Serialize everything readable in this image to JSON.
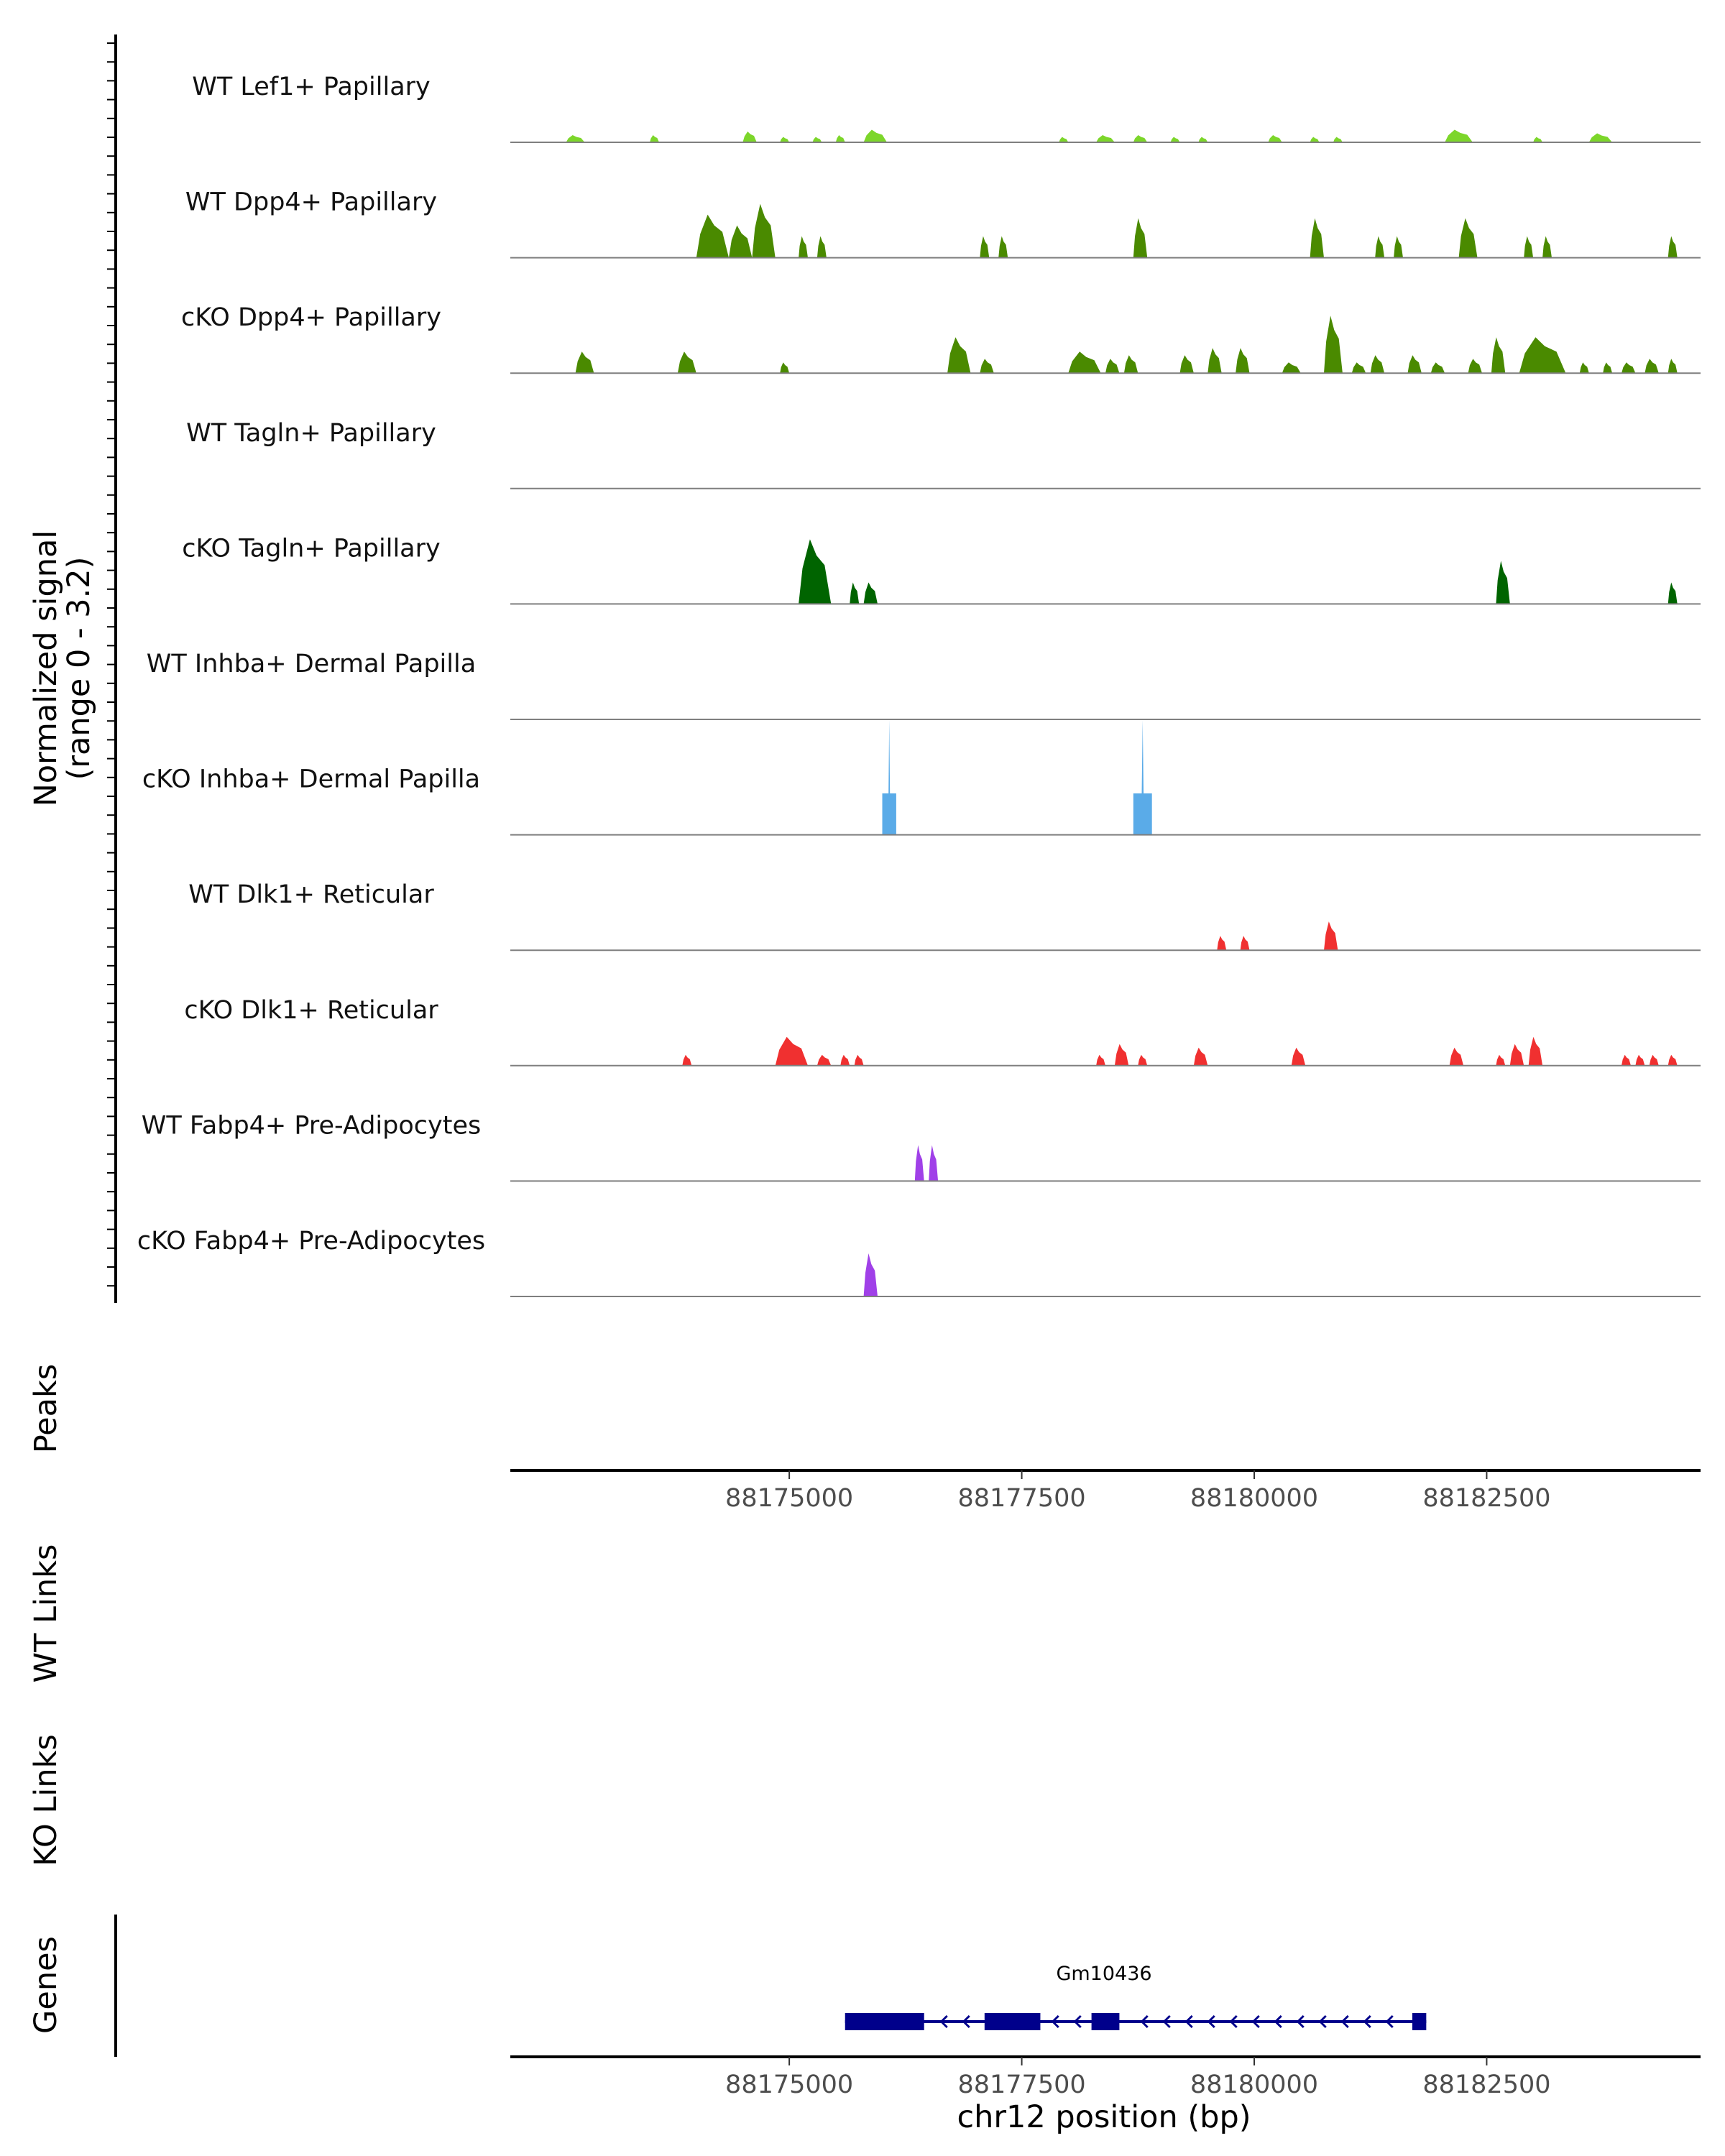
{
  "chart_data": {
    "type": "area",
    "title": "",
    "region": "chr12:88172000-88184800",
    "y_axis_label_line1": "Normalized signal",
    "y_axis_label_line2": "(range 0 - 3.2)",
    "ylim": [
      0,
      3.2
    ],
    "xlim": [
      88172000,
      88184800
    ],
    "x_ticks": [
      88175000,
      88177500,
      88180000,
      88182500
    ],
    "x_tick_labels": [
      "88175000",
      "88177500",
      "88180000",
      "88182500"
    ],
    "xlabel": "chr12 position (bp)",
    "tracks": [
      {
        "label": "WT Lef1+ Papillary",
        "color": "#7cd62a",
        "peaks": [
          [
            88172600,
            88172800,
            0.2
          ],
          [
            88173500,
            88173600,
            0.2
          ],
          [
            88174500,
            88174650,
            0.3
          ],
          [
            88174900,
            88175000,
            0.15
          ],
          [
            88175250,
            88175350,
            0.15
          ],
          [
            88175500,
            88175600,
            0.2
          ],
          [
            88175800,
            88176050,
            0.35
          ],
          [
            88177900,
            88178000,
            0.15
          ],
          [
            88178300,
            88178500,
            0.2
          ],
          [
            88178700,
            88178850,
            0.2
          ],
          [
            88179100,
            88179200,
            0.15
          ],
          [
            88179400,
            88179500,
            0.15
          ],
          [
            88180150,
            88180300,
            0.2
          ],
          [
            88180600,
            88180700,
            0.15
          ],
          [
            88180850,
            88180950,
            0.15
          ],
          [
            88182050,
            88182350,
            0.35
          ],
          [
            88183000,
            88183100,
            0.15
          ],
          [
            88183600,
            88183850,
            0.25
          ]
        ]
      },
      {
        "label": "WT Dpp4+ Papillary",
        "color": "#4a8a00",
        "peaks": [
          [
            88174000,
            88174350,
            1.2
          ],
          [
            88174350,
            88174600,
            0.9
          ],
          [
            88174600,
            88174850,
            1.5
          ],
          [
            88175100,
            88175200,
            0.6
          ],
          [
            88175300,
            88175400,
            0.6
          ],
          [
            88177050,
            88177150,
            0.6
          ],
          [
            88177250,
            88177350,
            0.6
          ],
          [
            88178700,
            88178850,
            1.1
          ],
          [
            88180600,
            88180750,
            1.1
          ],
          [
            88181300,
            88181400,
            0.6
          ],
          [
            88181500,
            88181600,
            0.6
          ],
          [
            88182200,
            88182400,
            1.1
          ],
          [
            88182900,
            88183000,
            0.6
          ],
          [
            88183100,
            88183200,
            0.6
          ],
          [
            88184450,
            88184550,
            0.6
          ]
        ]
      },
      {
        "label": "cKO Dpp4+ Papillary",
        "color": "#4a8a00",
        "peaks": [
          [
            88172700,
            88172900,
            0.6
          ],
          [
            88173800,
            88174000,
            0.6
          ],
          [
            88174900,
            88175000,
            0.3
          ],
          [
            88176700,
            88176950,
            1.0
          ],
          [
            88177050,
            88177200,
            0.4
          ],
          [
            88178000,
            88178350,
            0.6
          ],
          [
            88178400,
            88178550,
            0.4
          ],
          [
            88178600,
            88178750,
            0.5
          ],
          [
            88179200,
            88179350,
            0.5
          ],
          [
            88179500,
            88179650,
            0.7
          ],
          [
            88179800,
            88179950,
            0.7
          ],
          [
            88180300,
            88180500,
            0.3
          ],
          [
            88180750,
            88180950,
            1.6
          ],
          [
            88181050,
            88181200,
            0.3
          ],
          [
            88181250,
            88181400,
            0.5
          ],
          [
            88181650,
            88181800,
            0.5
          ],
          [
            88181900,
            88182050,
            0.3
          ],
          [
            88182300,
            88182450,
            0.4
          ],
          [
            88182550,
            88182700,
            1.0
          ],
          [
            88182850,
            88183350,
            1.0
          ],
          [
            88183500,
            88183600,
            0.3
          ],
          [
            88183750,
            88183850,
            0.3
          ],
          [
            88183950,
            88184100,
            0.3
          ],
          [
            88184200,
            88184350,
            0.4
          ],
          [
            88184450,
            88184550,
            0.4
          ]
        ]
      },
      {
        "label": "WT Tagln+ Papillary",
        "color": "#006400",
        "peaks": []
      },
      {
        "label": "cKO Tagln+ Papillary",
        "color": "#006400",
        "peaks": [
          [
            88175100,
            88175450,
            1.8
          ],
          [
            88175650,
            88175750,
            0.6
          ],
          [
            88175800,
            88175950,
            0.6
          ],
          [
            88182600,
            88182750,
            1.2
          ],
          [
            88184450,
            88184550,
            0.6
          ]
        ]
      },
      {
        "label": "WT Inhba+ Dermal Papilla",
        "color": "#5aabe8",
        "peaks": []
      },
      {
        "label": "cKO Inhba+ Dermal Papilla",
        "color": "#5aabe8",
        "peaks": [
          [
            88176000,
            88176150,
            3.2
          ],
          [
            88178700,
            88178900,
            3.2
          ]
        ]
      },
      {
        "label": "WT Dlk1+ Reticular",
        "color": "#f03030",
        "peaks": [
          [
            88179600,
            88179700,
            0.4
          ],
          [
            88179850,
            88179950,
            0.4
          ],
          [
            88180750,
            88180900,
            0.8
          ]
        ]
      },
      {
        "label": "cKO Dlk1+ Reticular",
        "color": "#f03030",
        "peaks": [
          [
            88173850,
            88173950,
            0.3
          ],
          [
            88174850,
            88175200,
            0.8
          ],
          [
            88175300,
            88175450,
            0.3
          ],
          [
            88175550,
            88175650,
            0.3
          ],
          [
            88175700,
            88175800,
            0.3
          ],
          [
            88178300,
            88178400,
            0.3
          ],
          [
            88178500,
            88178650,
            0.6
          ],
          [
            88178750,
            88178850,
            0.3
          ],
          [
            88179350,
            88179500,
            0.5
          ],
          [
            88180400,
            88180550,
            0.5
          ],
          [
            88182100,
            88182250,
            0.5
          ],
          [
            88182600,
            88182700,
            0.3
          ],
          [
            88182750,
            88182900,
            0.6
          ],
          [
            88182950,
            88183100,
            0.8
          ],
          [
            88183950,
            88184050,
            0.3
          ],
          [
            88184100,
            88184200,
            0.3
          ],
          [
            88184250,
            88184350,
            0.3
          ],
          [
            88184450,
            88184550,
            0.3
          ]
        ]
      },
      {
        "label": "WT Fabp4+ Pre-Adipocytes",
        "color": "#a040e8",
        "peaks": [
          [
            88176350,
            88176450,
            1.0
          ],
          [
            88176500,
            88176600,
            1.0
          ]
        ]
      },
      {
        "label": "cKO Fabp4+ Pre-Adipocytes",
        "color": "#a040e8",
        "peaks": [
          [
            88175800,
            88175950,
            1.2
          ]
        ]
      }
    ],
    "panels": {
      "peaks_label": "Peaks",
      "wt_links_label": "WT Links",
      "ko_links_label": "KO Links",
      "genes_label": "Genes"
    },
    "gene": {
      "name": "Gm10436",
      "strand": "-",
      "start": 88175600,
      "end": 88181850,
      "exons": [
        [
          88175600,
          88176450
        ],
        [
          88177100,
          88177700
        ],
        [
          88178250,
          88178550
        ],
        [
          88181700,
          88181850
        ]
      ],
      "color": "#00008b"
    }
  }
}
